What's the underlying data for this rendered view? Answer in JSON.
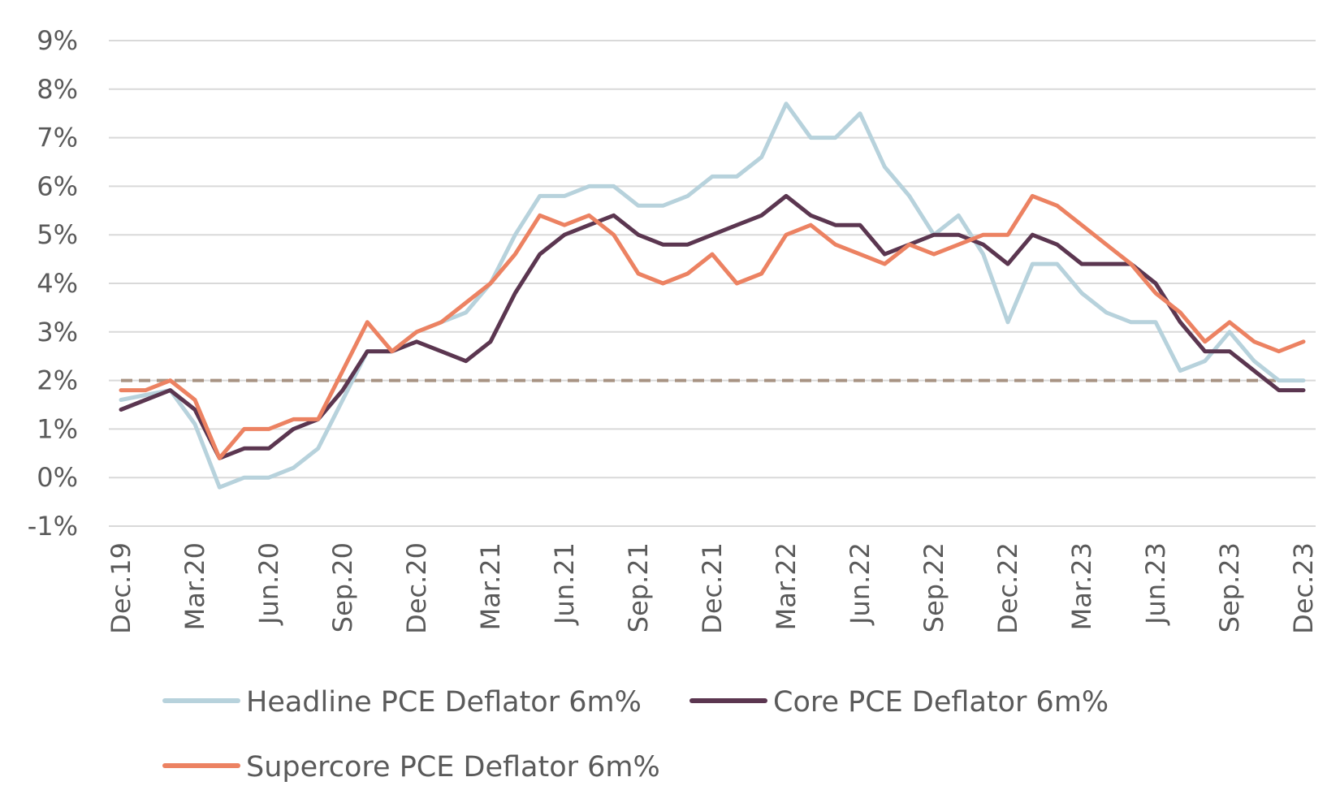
{
  "chart_data": {
    "type": "line",
    "title": "",
    "xlabel": "",
    "ylabel": "",
    "ylim": [
      -1,
      9
    ],
    "y_ticks": [
      "9%",
      "8%",
      "7%",
      "6%",
      "5%",
      "4%",
      "3%",
      "2%",
      "1%",
      "0%",
      "-1%"
    ],
    "y_tick_values": [
      9,
      8,
      7,
      6,
      5,
      4,
      3,
      2,
      1,
      0,
      -1
    ],
    "x_tick_labels": [
      "Dec.19",
      "Mar.20",
      "Jun.20",
      "Sep.20",
      "Dec.20",
      "Mar.21",
      "Jun.21",
      "Sep.21",
      "Dec.21",
      "Mar.22",
      "Jun.22",
      "Sep.22",
      "Dec.22",
      "Mar.23",
      "Jun.23",
      "Sep.23",
      "Dec.23"
    ],
    "x_tick_every": 3,
    "grid": true,
    "legend_position": "bottom",
    "reference_line": {
      "value": 2,
      "color": "#a89383",
      "style": "dashed"
    },
    "x": [
      "Dec.19",
      "Jan.20",
      "Feb.20",
      "Mar.20",
      "Apr.20",
      "May.20",
      "Jun.20",
      "Jul.20",
      "Aug.20",
      "Sep.20",
      "Oct.20",
      "Nov.20",
      "Dec.20",
      "Jan.21",
      "Feb.21",
      "Mar.21",
      "Apr.21",
      "May.21",
      "Jun.21",
      "Jul.21",
      "Aug.21",
      "Sep.21",
      "Oct.21",
      "Nov.21",
      "Dec.21",
      "Jan.22",
      "Feb.22",
      "Mar.22",
      "Apr.22",
      "May.22",
      "Jun.22",
      "Jul.22",
      "Aug.22",
      "Sep.22",
      "Oct.22",
      "Nov.22",
      "Dec.22",
      "Jan.23",
      "Feb.23",
      "Mar.23",
      "Apr.23",
      "May.23",
      "Jun.23",
      "Jul.23",
      "Aug.23",
      "Sep.23",
      "Oct.23",
      "Nov.23",
      "Dec.23"
    ],
    "series": [
      {
        "name": "Headline PCE Deflator 6m%",
        "color": "#b7d2dc",
        "values": [
          1.6,
          1.7,
          1.8,
          1.1,
          -0.2,
          0.0,
          0.0,
          0.2,
          0.6,
          1.6,
          2.6,
          2.6,
          3.0,
          3.2,
          3.4,
          4.0,
          5.0,
          5.8,
          5.8,
          6.0,
          6.0,
          5.6,
          5.6,
          5.8,
          6.2,
          6.2,
          6.6,
          7.7,
          7.0,
          7.0,
          7.5,
          6.4,
          5.8,
          5.0,
          5.4,
          4.6,
          3.2,
          4.4,
          4.4,
          3.8,
          3.4,
          3.2,
          3.2,
          2.2,
          2.4,
          3.0,
          2.4,
          2.0,
          2.0
        ]
      },
      {
        "name": "Core PCE Deflator 6m%",
        "color": "#5b3650",
        "values": [
          1.4,
          1.6,
          1.8,
          1.4,
          0.4,
          0.6,
          0.6,
          1.0,
          1.2,
          1.8,
          2.6,
          2.6,
          2.8,
          2.6,
          2.4,
          2.8,
          3.8,
          4.6,
          5.0,
          5.2,
          5.4,
          5.0,
          4.8,
          4.8,
          5.0,
          5.2,
          5.4,
          5.8,
          5.4,
          5.2,
          5.2,
          4.6,
          4.8,
          5.0,
          5.0,
          4.8,
          4.4,
          5.0,
          4.8,
          4.4,
          4.4,
          4.4,
          4.0,
          3.2,
          2.6,
          2.6,
          2.2,
          1.8,
          1.8
        ]
      },
      {
        "name": "Supercore PCE Deflator 6m%",
        "color": "#ec8262",
        "values": [
          1.8,
          1.8,
          2.0,
          1.6,
          0.4,
          1.0,
          1.0,
          1.2,
          1.2,
          2.2,
          3.2,
          2.6,
          3.0,
          3.2,
          3.6,
          4.0,
          4.6,
          5.4,
          5.2,
          5.4,
          5.0,
          4.2,
          4.0,
          4.2,
          4.6,
          4.0,
          4.2,
          5.0,
          5.2,
          4.8,
          4.6,
          4.4,
          4.8,
          4.6,
          4.8,
          5.0,
          5.0,
          5.8,
          5.6,
          5.2,
          4.8,
          4.4,
          3.8,
          3.4,
          2.8,
          3.2,
          2.8,
          2.6,
          2.8
        ]
      }
    ]
  }
}
